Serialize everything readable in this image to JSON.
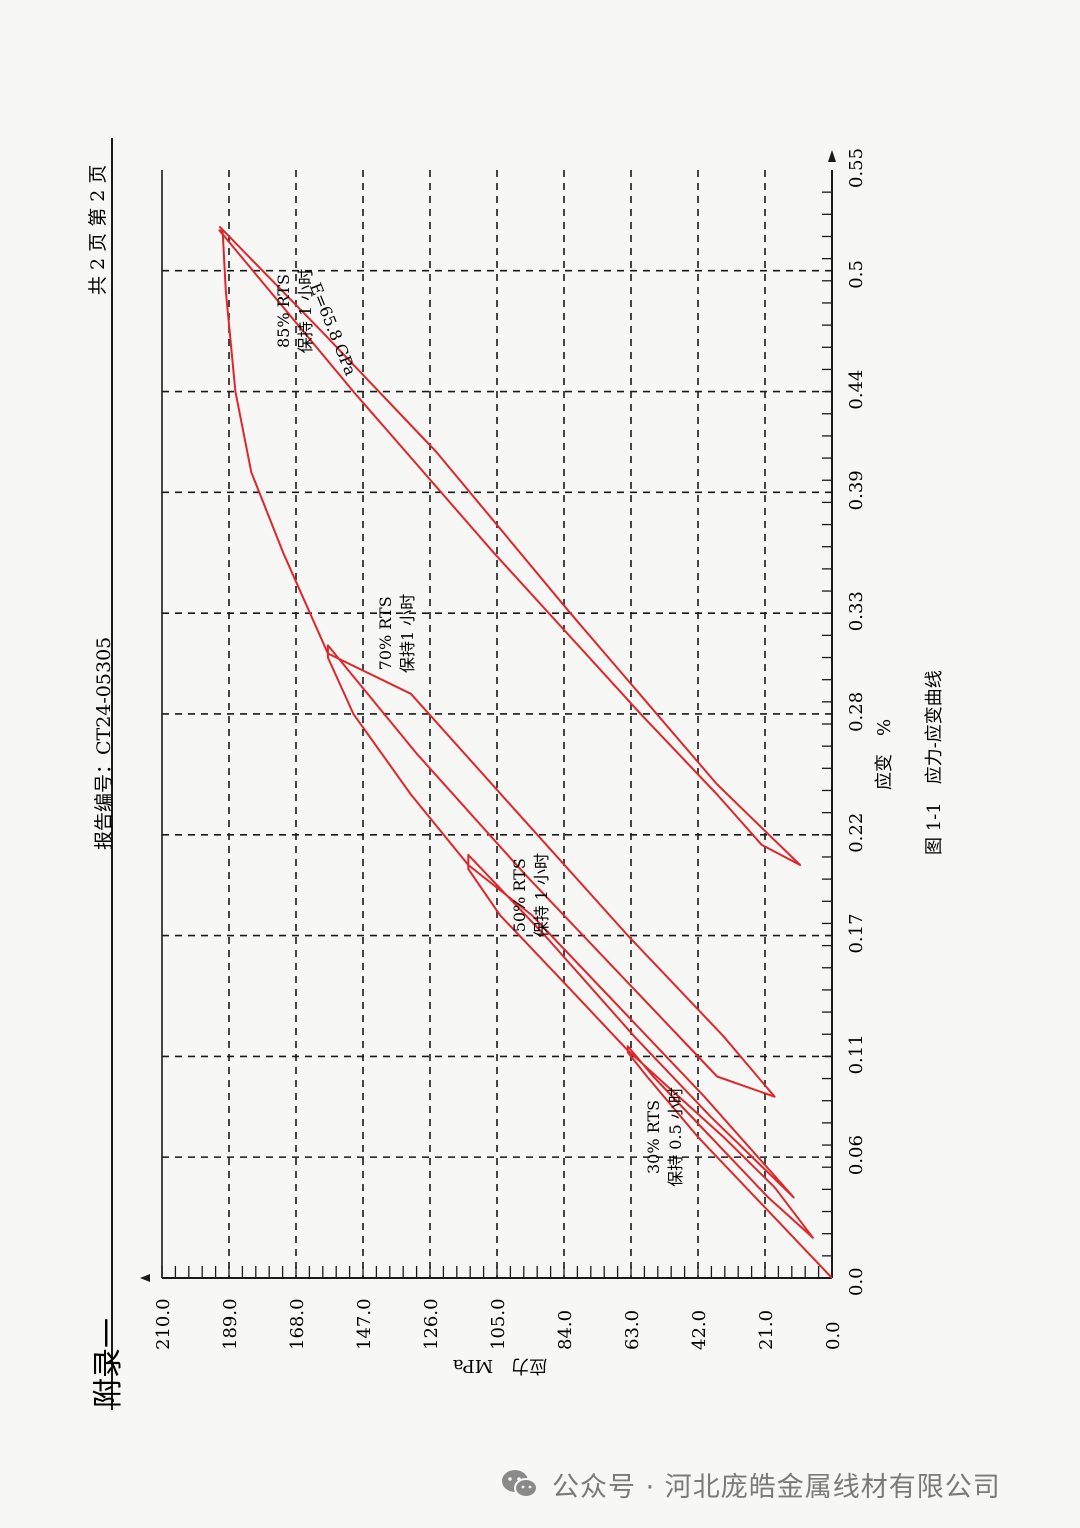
{
  "header": {
    "appendix": "附录一",
    "report_no": "报告编号：CT24-05305",
    "pages": "共 2 页 第 2 页"
  },
  "figure_caption": "图 1-1　应力-应变曲线",
  "footer": {
    "text": "公众号 · 河北庞皓金属线材有限公司"
  },
  "colors": {
    "curve": "#e0262a",
    "grid": "#1a1a1a",
    "axis": "#1a1a1a"
  },
  "chart_data": {
    "type": "line",
    "xlabel": "应变　%",
    "ylabel": "应力　MPa",
    "xlim": [
      0.0,
      0.55
    ],
    "ylim": [
      0.0,
      210.0
    ],
    "x_ticks": [
      "0.0",
      "0.06",
      "0.11",
      "0.17",
      "0.22",
      "0.28",
      "0.33",
      "0.39",
      "0.44",
      "0.5",
      "0.55"
    ],
    "y_ticks": [
      "0.0",
      "21.0",
      "42.0",
      "63.0",
      "84.0",
      "105.0",
      "126.0",
      "147.0",
      "168.0",
      "189.0",
      "210.0"
    ],
    "grid": true,
    "annotations": [
      {
        "lines": [
          "30% RTS",
          "保持 0.5 小时"
        ],
        "x": 0.07,
        "y": 63
      },
      {
        "lines": [
          "50% RTS",
          "保持 1 小时"
        ],
        "x": 0.19,
        "y": 105
      },
      {
        "lines": [
          "70% RTS",
          "保持1 小时"
        ],
        "x": 0.32,
        "y": 147
      },
      {
        "lines": [
          "85% RTS",
          "保持 1 小时"
        ],
        "x": 0.48,
        "y": 179
      },
      {
        "lines": [
          "E=65.8 GPa"
        ],
        "x": 0.46,
        "y": 160
      }
    ],
    "series": [
      {
        "points": [
          [
            0.0,
            0
          ],
          [
            0.04,
            24
          ],
          [
            0.07,
            42
          ],
          [
            0.1,
            58
          ],
          [
            0.112,
            64
          ],
          [
            0.115,
            64
          ],
          [
            0.1,
            56
          ],
          [
            0.07,
            38
          ],
          [
            0.04,
            20
          ],
          [
            0.02,
            6
          ],
          [
            0.045,
            18
          ],
          [
            0.07,
            34
          ],
          [
            0.09,
            48
          ],
          [
            0.113,
            64
          ]
        ]
      },
      {
        "points": [
          [
            0.113,
            64
          ],
          [
            0.15,
            86
          ],
          [
            0.18,
            104
          ],
          [
            0.203,
            114
          ],
          [
            0.21,
            114
          ],
          [
            0.17,
            90
          ],
          [
            0.12,
            62
          ],
          [
            0.08,
            38
          ],
          [
            0.04,
            12
          ],
          [
            0.09,
            40
          ],
          [
            0.14,
            70
          ],
          [
            0.18,
            94
          ],
          [
            0.205,
            114
          ]
        ]
      },
      {
        "points": [
          [
            0.205,
            114
          ],
          [
            0.24,
            132
          ],
          [
            0.28,
            150
          ],
          [
            0.308,
            158
          ],
          [
            0.314,
            158
          ],
          [
            0.26,
            130
          ],
          [
            0.2,
            96
          ],
          [
            0.14,
            60
          ],
          [
            0.1,
            36
          ],
          [
            0.09,
            18
          ],
          [
            0.12,
            34
          ],
          [
            0.17,
            64
          ],
          [
            0.23,
            98
          ],
          [
            0.29,
            132
          ],
          [
            0.31,
            158
          ]
        ]
      },
      {
        "points": [
          [
            0.31,
            158
          ],
          [
            0.36,
            172
          ],
          [
            0.4,
            182
          ],
          [
            0.44,
            187
          ],
          [
            0.49,
            190
          ],
          [
            0.52,
            191
          ],
          [
            0.52,
            192
          ],
          [
            0.44,
            150
          ],
          [
            0.36,
            106
          ],
          [
            0.28,
            60
          ],
          [
            0.24,
            36
          ],
          [
            0.215,
            22
          ],
          [
            0.205,
            10
          ],
          [
            0.245,
            36
          ],
          [
            0.33,
            82
          ],
          [
            0.41,
            124
          ],
          [
            0.47,
            160
          ],
          [
            0.522,
            192
          ]
        ]
      }
    ]
  }
}
